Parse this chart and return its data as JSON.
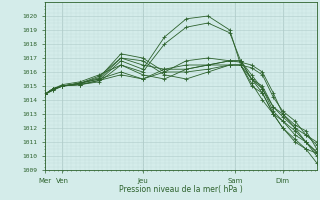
{
  "xlabel": "Pression niveau de la mer( hPa )",
  "ylim": [
    1009,
    1021
  ],
  "yticks": [
    1009,
    1010,
    1011,
    1012,
    1013,
    1014,
    1015,
    1016,
    1017,
    1018,
    1019,
    1020
  ],
  "bg_color": "#d4ecea",
  "grid_major_color": "#b0ccca",
  "grid_minor_color": "#c4dedd",
  "line_color": "#2d622d",
  "day_positions": [
    0.0,
    0.065,
    0.36,
    0.7,
    0.875
  ],
  "day_labels": [
    "Mer",
    "Ven",
    "Jeu",
    "Sam",
    "Dim"
  ],
  "series": [
    {
      "x": [
        0,
        0.03,
        0.065,
        0.13,
        0.2,
        0.28,
        0.36,
        0.44,
        0.52,
        0.6,
        0.68,
        0.72,
        0.76,
        0.8,
        0.84,
        0.875,
        0.92,
        0.96,
        1.0
      ],
      "y": [
        1014.4,
        1014.8,
        1015.0,
        1015.1,
        1015.3,
        1016.5,
        1016.0,
        1018.0,
        1019.2,
        1019.5,
        1018.8,
        1016.8,
        1015.5,
        1014.8,
        1013.5,
        1012.8,
        1012.0,
        1011.5,
        1011.0
      ]
    },
    {
      "x": [
        0,
        0.03,
        0.065,
        0.13,
        0.2,
        0.28,
        0.36,
        0.44,
        0.52,
        0.6,
        0.68,
        0.72,
        0.76,
        0.8,
        0.84,
        0.875,
        0.92,
        0.96,
        1.0
      ],
      "y": [
        1014.4,
        1014.8,
        1015.0,
        1015.1,
        1015.4,
        1016.8,
        1016.2,
        1018.5,
        1019.8,
        1020.0,
        1019.0,
        1016.5,
        1015.0,
        1014.5,
        1013.0,
        1012.5,
        1011.8,
        1011.0,
        1010.2
      ]
    },
    {
      "x": [
        0,
        0.03,
        0.065,
        0.13,
        0.2,
        0.28,
        0.36,
        0.44,
        0.52,
        0.6,
        0.68,
        0.72,
        0.76,
        0.8,
        0.84,
        0.875,
        0.92,
        0.96,
        1.0
      ],
      "y": [
        1014.4,
        1014.8,
        1015.0,
        1015.2,
        1015.5,
        1017.0,
        1016.5,
        1016.2,
        1016.2,
        1016.5,
        1016.8,
        1016.7,
        1016.5,
        1016.0,
        1014.5,
        1013.0,
        1012.2,
        1011.8,
        1010.5
      ]
    },
    {
      "x": [
        0,
        0.03,
        0.065,
        0.13,
        0.2,
        0.28,
        0.36,
        0.44,
        0.52,
        0.6,
        0.68,
        0.72,
        0.76,
        0.8,
        0.84,
        0.875,
        0.92,
        0.96,
        1.0
      ],
      "y": [
        1014.4,
        1014.8,
        1015.0,
        1015.2,
        1015.6,
        1017.3,
        1017.0,
        1016.0,
        1016.0,
        1016.2,
        1016.5,
        1016.5,
        1016.3,
        1015.8,
        1014.2,
        1013.2,
        1012.5,
        1011.5,
        1010.8
      ]
    },
    {
      "x": [
        0,
        0.03,
        0.065,
        0.13,
        0.2,
        0.28,
        0.36,
        0.44,
        0.52,
        0.6,
        0.68,
        0.72,
        0.76,
        0.8,
        0.84,
        0.875,
        0.92,
        0.96,
        1.0
      ],
      "y": [
        1014.4,
        1014.8,
        1015.0,
        1015.2,
        1015.7,
        1017.0,
        1016.8,
        1015.8,
        1015.5,
        1016.0,
        1016.5,
        1016.5,
        1015.5,
        1015.0,
        1013.5,
        1013.0,
        1012.0,
        1011.0,
        1010.3
      ]
    },
    {
      "x": [
        0,
        0.03,
        0.065,
        0.13,
        0.2,
        0.28,
        0.36,
        0.44,
        0.52,
        0.6,
        0.68,
        0.72,
        0.76,
        0.8,
        0.84,
        0.875,
        0.92,
        0.96,
        1.0
      ],
      "y": [
        1014.4,
        1014.8,
        1015.1,
        1015.3,
        1015.8,
        1016.5,
        1015.8,
        1015.5,
        1016.2,
        1016.5,
        1016.8,
        1016.8,
        1015.8,
        1014.8,
        1013.2,
        1012.5,
        1011.5,
        1011.0,
        1010.0
      ]
    },
    {
      "x": [
        0,
        0.03,
        0.065,
        0.13,
        0.2,
        0.28,
        0.36,
        0.44,
        0.52,
        0.6,
        0.68,
        0.72,
        0.76,
        0.8,
        0.84,
        0.875,
        0.92,
        0.96,
        1.0
      ],
      "y": [
        1014.4,
        1014.7,
        1015.0,
        1015.2,
        1015.5,
        1016.0,
        1015.5,
        1016.0,
        1016.8,
        1017.0,
        1016.8,
        1016.8,
        1015.5,
        1014.5,
        1013.0,
        1012.0,
        1011.0,
        1010.5,
        1009.5
      ]
    },
    {
      "x": [
        0,
        0.03,
        0.065,
        0.13,
        0.2,
        0.28,
        0.36,
        0.44,
        0.52,
        0.6,
        0.68,
        0.72,
        0.76,
        0.8,
        0.84,
        0.875,
        0.92,
        0.96,
        1.0
      ],
      "y": [
        1014.4,
        1014.7,
        1015.0,
        1015.1,
        1015.4,
        1015.8,
        1015.5,
        1016.2,
        1016.5,
        1016.5,
        1016.5,
        1016.5,
        1015.2,
        1014.0,
        1013.0,
        1012.0,
        1011.2,
        1010.5,
        1010.2
      ]
    }
  ]
}
